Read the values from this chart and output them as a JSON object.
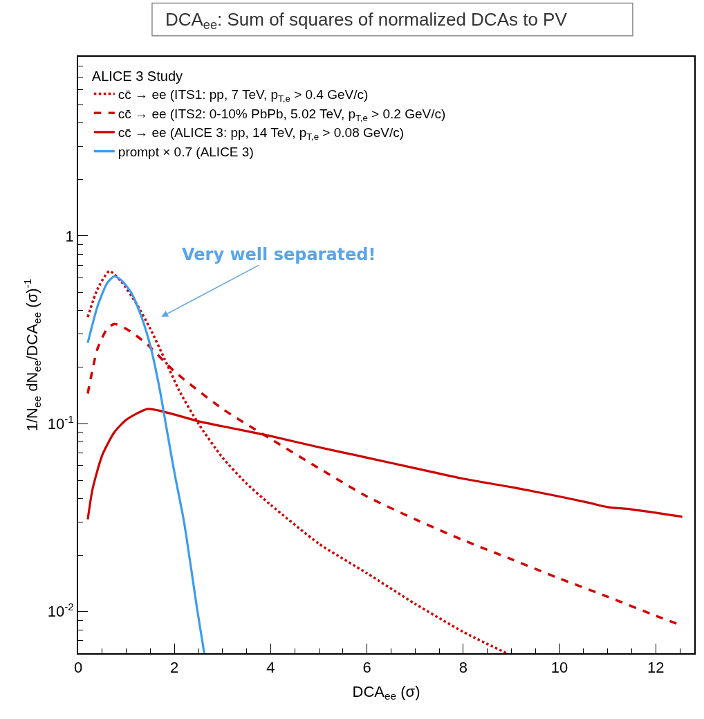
{
  "chart_data": {
    "type": "line",
    "title": "DCA$_{ee}$: Sum of squares of normalized DCAs to PV",
    "xlabel": "DCA$_{ee}$ (σ)",
    "ylabel": "1/N$_{ee}$ dN$_{ee}$/DCA$_{ee}$ (σ)$^{-1}$",
    "legend_title": "ALICE 3 Study",
    "annotations": [
      "Very well separated!"
    ],
    "log": "y",
    "legend": "top left",
    "xlim": [
      0,
      12.8
    ],
    "xticks": [
      0,
      2,
      4,
      6,
      8,
      10,
      12
    ],
    "ylim": [
      0.006,
      9
    ],
    "yticks": [
      {
        "value": 0.01,
        "label": "10$^{-2}$"
      },
      {
        "value": 0.1,
        "label": "10$^{-1}$"
      },
      1
    ],
    "series": [
      {
        "name": "cc̄ → ee (ITS1: pp, 7 TeV, p$_{T,e}$ > 0.4 GeV/c)",
        "color": "#d40000",
        "line_style": "dotted",
        "x": [
          0.2,
          0.4,
          0.65,
          0.9,
          1.2,
          1.5,
          1.8,
          2.1,
          2.5,
          3.0,
          3.5,
          4.0,
          5.0,
          6.0,
          7.0,
          8.0,
          8.9
        ],
        "values": [
          0.37,
          0.52,
          0.65,
          0.57,
          0.44,
          0.32,
          0.22,
          0.15,
          0.1,
          0.066,
          0.048,
          0.037,
          0.023,
          0.016,
          0.011,
          0.0078,
          0.006
        ]
      },
      {
        "name": "cc̄ → ee (ITS2: 0-10% PbPb, 5.02 TeV, p$_{T,e}$ > 0.2 GeV/c)",
        "color": "#d40000",
        "line_style": "dashed",
        "x": [
          0.2,
          0.4,
          0.6,
          0.75,
          1.0,
          1.4,
          2.0,
          3.0,
          4.0,
          5.0,
          6.0,
          7.0,
          8.0,
          9.0,
          10.0,
          11.0,
          12.0,
          12.5
        ],
        "values": [
          0.145,
          0.25,
          0.32,
          0.34,
          0.32,
          0.27,
          0.19,
          0.12,
          0.083,
          0.058,
          0.041,
          0.031,
          0.024,
          0.019,
          0.015,
          0.012,
          0.0095,
          0.0085
        ]
      },
      {
        "name": "cc̄ → ee (ALICE 3: pp, 14 TeV, p$_{T,e}$ > 0.08 GeV/c)",
        "color": "#cc0000",
        "line_style": "solid",
        "x": [
          0.2,
          0.3,
          0.5,
          0.75,
          1.0,
          1.45,
          2.0,
          2.5,
          3.0,
          4.0,
          5.0,
          6.0,
          7.0,
          8.0,
          9.0,
          10.0,
          10.6,
          11.0,
          11.5,
          12.55
        ],
        "values": [
          0.031,
          0.045,
          0.068,
          0.09,
          0.105,
          0.12,
          0.112,
          0.103,
          0.097,
          0.086,
          0.075,
          0.066,
          0.058,
          0.051,
          0.046,
          0.041,
          0.038,
          0.036,
          0.035,
          0.032
        ]
      },
      {
        "name": "prompt × 0.7 (ALICE 3)",
        "color": "#3d9bf0",
        "line_style": "solid",
        "x": [
          0.2,
          0.4,
          0.6,
          0.75,
          0.9,
          1.1,
          1.3,
          1.5,
          1.7,
          1.82,
          2.0,
          2.2,
          2.48,
          2.62
        ],
        "values": [
          0.27,
          0.42,
          0.56,
          0.61,
          0.58,
          0.5,
          0.38,
          0.26,
          0.15,
          0.1,
          0.055,
          0.03,
          0.01,
          0.006
        ]
      }
    ]
  }
}
